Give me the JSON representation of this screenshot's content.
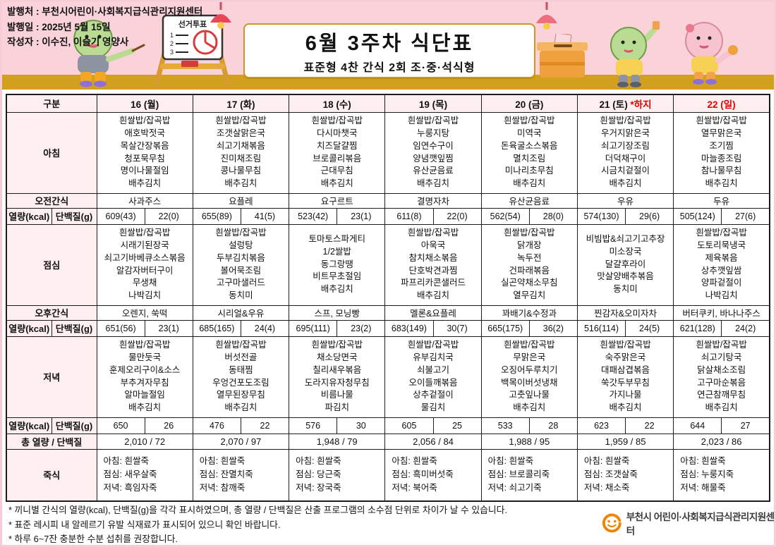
{
  "meta": {
    "publisher_line": "발행처 : 부천시어린이·사회복지급식관리지원센터",
    "date_line": "발행일 : 2025년 5월 15일",
    "author_line": "작성자 : 이수진, 이슬기 영양사"
  },
  "title": {
    "main": "6월 3주차 식단표",
    "sub": "표준형 4찬 간식 2회 조·중·석식형"
  },
  "decor": {
    "sign_title": "선거투표"
  },
  "table": {
    "labels": {
      "corner": "구분",
      "breakfast": "아침",
      "am_snack": "오전간식",
      "kcal": "열량(kcal)",
      "protein": "단백질(g)",
      "lunch": "점심",
      "pm_snack": "오후간식",
      "dinner": "저녁",
      "total": "총 열량 / 단백질",
      "porridge": "죽식"
    },
    "days": [
      {
        "label": "16 (월)"
      },
      {
        "label": "17 (화)"
      },
      {
        "label": "18 (수)"
      },
      {
        "label": "19 (목)"
      },
      {
        "label": "20 (금)"
      },
      {
        "label": "21 (토)",
        "note": "*하지"
      },
      {
        "label": "22 (일)",
        "holiday": true
      }
    ],
    "breakfast": [
      [
        "흰쌀밥/잡곡밥",
        "애호박젓국",
        "목살간장볶음",
        "청포묵무침",
        "명이나물절임",
        "배추김치"
      ],
      [
        "흰쌀밥/잡곡밥",
        "조갯살맑은국",
        "쇠고기채볶음",
        "진미채조림",
        "콩나물무침",
        "배추김치"
      ],
      [
        "흰쌀밥/잡곡밥",
        "다시마챗국",
        "치즈달걀찜",
        "브로콜리볶음",
        "근대무침",
        "배추김치"
      ],
      [
        "흰쌀밥/잡곡밥",
        "누룽지탕",
        "임연수구이",
        "양념깻잎찜",
        "유산균음료",
        "배추김치"
      ],
      [
        "흰쌀밥/잡곡밥",
        "미역국",
        "돈육굴소스볶음",
        "멸치조림",
        "미나리초무침",
        "배추김치"
      ],
      [
        "흰쌀밥/잡곡밥",
        "우거지맑은국",
        "쇠고기장조림",
        "더덕채구이",
        "시금치겉절이",
        "배추김치"
      ],
      [
        "흰쌀밥/잡곡밥",
        "열무맑은국",
        "조기찜",
        "마늘종조림",
        "참나물무침",
        "배추김치"
      ]
    ],
    "am_snack": [
      "사과주스",
      "요플레",
      "요구르트",
      "결명자차",
      "유산균음료",
      "우유",
      "두유"
    ],
    "kcal_am": [
      [
        "609(43)",
        "22(0)"
      ],
      [
        "655(89)",
        "41(5)"
      ],
      [
        "523(42)",
        "23(1)"
      ],
      [
        "611(8)",
        "22(0)"
      ],
      [
        "562(54)",
        "28(0)"
      ],
      [
        "574(130)",
        "29(6)"
      ],
      [
        "505(124)",
        "27(6)"
      ]
    ],
    "lunch": [
      [
        "흰쌀밥/잡곡밥",
        "시래기된장국",
        "쇠고기바베큐소스볶음",
        "알감자버터구이",
        "무생채",
        "나박김치"
      ],
      [
        "흰쌀밥/잡곡밥",
        "설렁탕",
        "두부김치볶음",
        "볼어묵조림",
        "고구마샐러드",
        "동치미"
      ],
      [
        "토마토스파게티",
        "1/2쌀밥",
        "동그랑땡",
        "비트무초절임",
        "배추김치"
      ],
      [
        "흰쌀밥/잡곡밥",
        "아욱국",
        "참치채소볶음",
        "단호박견과찜",
        "파프리카콘샐러드",
        "배추김치"
      ],
      [
        "흰쌀밥/잡곡밥",
        "닭개장",
        "녹두전",
        "건파래볶음",
        "실곤약채소무침",
        "열무김치"
      ],
      [
        "비빔밥&쇠고기고추장",
        "미소장국",
        "달걀후라이",
        "맛살양배추볶음",
        "동치미"
      ],
      [
        "흰쌀밥/잡곡밥",
        "도토리묵냉국",
        "제육볶음",
        "상추깻잎쌈",
        "양파겉절이",
        "나박김치"
      ]
    ],
    "pm_snack": [
      "오렌지, 쑥떡",
      "시리얼&우유",
      "스프, 모닝빵",
      "멜론&요플레",
      "꽈배기&수정과",
      "찐감자&오미자차",
      "버터쿠키, 바나나주스"
    ],
    "kcal_pm": [
      [
        "651(56)",
        "23(1)"
      ],
      [
        "685(165)",
        "24(4)"
      ],
      [
        "695(111)",
        "23(2)"
      ],
      [
        "683(149)",
        "30(7)"
      ],
      [
        "665(175)",
        "36(2)"
      ],
      [
        "516(114)",
        "24(5)"
      ],
      [
        "621(128)",
        "24(2)"
      ]
    ],
    "dinner": [
      [
        "흰쌀밥/잡곡밥",
        "물만둣국",
        "훈제오리구이&소스",
        "부추겨자무침",
        "알마늘절임",
        "배추김치"
      ],
      [
        "흰쌀밥/잡곡밥",
        "버섯전골",
        "동태찜",
        "우엉건포도조림",
        "열무된장무침",
        "배추김치"
      ],
      [
        "흰쌀밥/잡곡밥",
        "채소당면국",
        "칠리새우볶음",
        "도라지유자청무침",
        "비름나물",
        "파김치"
      ],
      [
        "흰쌀밥/잡곡밥",
        "유부김치국",
        "쇠불고기",
        "오이들깨볶음",
        "상추겉절이",
        "물김치"
      ],
      [
        "흰쌀밥/잡곡밥",
        "무맑은국",
        "오징어두루치기",
        "백목이버섯냉채",
        "고춧잎나물",
        "배추김치"
      ],
      [
        "흰쌀밥/잡곡밥",
        "숙주맑은국",
        "대패삼겹볶음",
        "쑥갓두부무침",
        "가지나물",
        "배추김치"
      ],
      [
        "흰쌀밥/잡곡밥",
        "쇠고기탕국",
        "닭살채소조림",
        "고구마순볶음",
        "연근참깨무침",
        "배추김치"
      ]
    ],
    "kcal_dinner": [
      [
        "650",
        "26"
      ],
      [
        "476",
        "22"
      ],
      [
        "576",
        "30"
      ],
      [
        "605",
        "25"
      ],
      [
        "533",
        "28"
      ],
      [
        "623",
        "22"
      ],
      [
        "644",
        "27"
      ]
    ],
    "total": [
      "2,010 / 72",
      "2,070 / 97",
      "1,948 / 79",
      "2,056 / 84",
      "1,988 / 95",
      "1,959 / 85",
      "2,023 / 86"
    ],
    "porridge": [
      [
        "아침: 흰쌀죽",
        "점심: 새우살죽",
        "저녁: 흑임자죽"
      ],
      [
        "아침: 흰쌀죽",
        "점심: 잔멸치죽",
        "저녁: 참깨죽"
      ],
      [
        "아침: 흰쌀죽",
        "점심: 당근죽",
        "저녁: 장국죽"
      ],
      [
        "아침: 흰쌀죽",
        "점심: 흑미버섯죽",
        "저녁: 북어죽"
      ],
      [
        "아침: 흰쌀죽",
        "점심: 브로콜리죽",
        "저녁: 쇠고기죽"
      ],
      [
        "아침: 흰쌀죽",
        "점심: 조갯살죽",
        "저녁: 채소죽"
      ],
      [
        "아침: 흰쌀죽",
        "점심: 누룽지죽",
        "저녁: 해물죽"
      ]
    ]
  },
  "footer": {
    "notes": [
      "* 끼니별 간식의 열량(kcal), 단백질(g)을 각각 표시하였으며, 총 열량 / 단백질은 산출 프로그램의 소수점 단위로 차이가 날 수 있습니다.",
      "* 표준 레시피 내 알레르기 유발 식재료가 표시되어 있으니 확인 바랍니다.",
      "* 하루 6~7잔 충분한 수분 섭취를 권장합니다."
    ],
    "logo_text": "부천시 어린이·사회복지급식관리지원센터"
  },
  "colors": {
    "header_pink": "#f9d2da",
    "gold_band": "#d2a01d",
    "label_pink": "#fdeff0",
    "holiday_red": "#e60000",
    "logo_orange": "#f08300"
  }
}
